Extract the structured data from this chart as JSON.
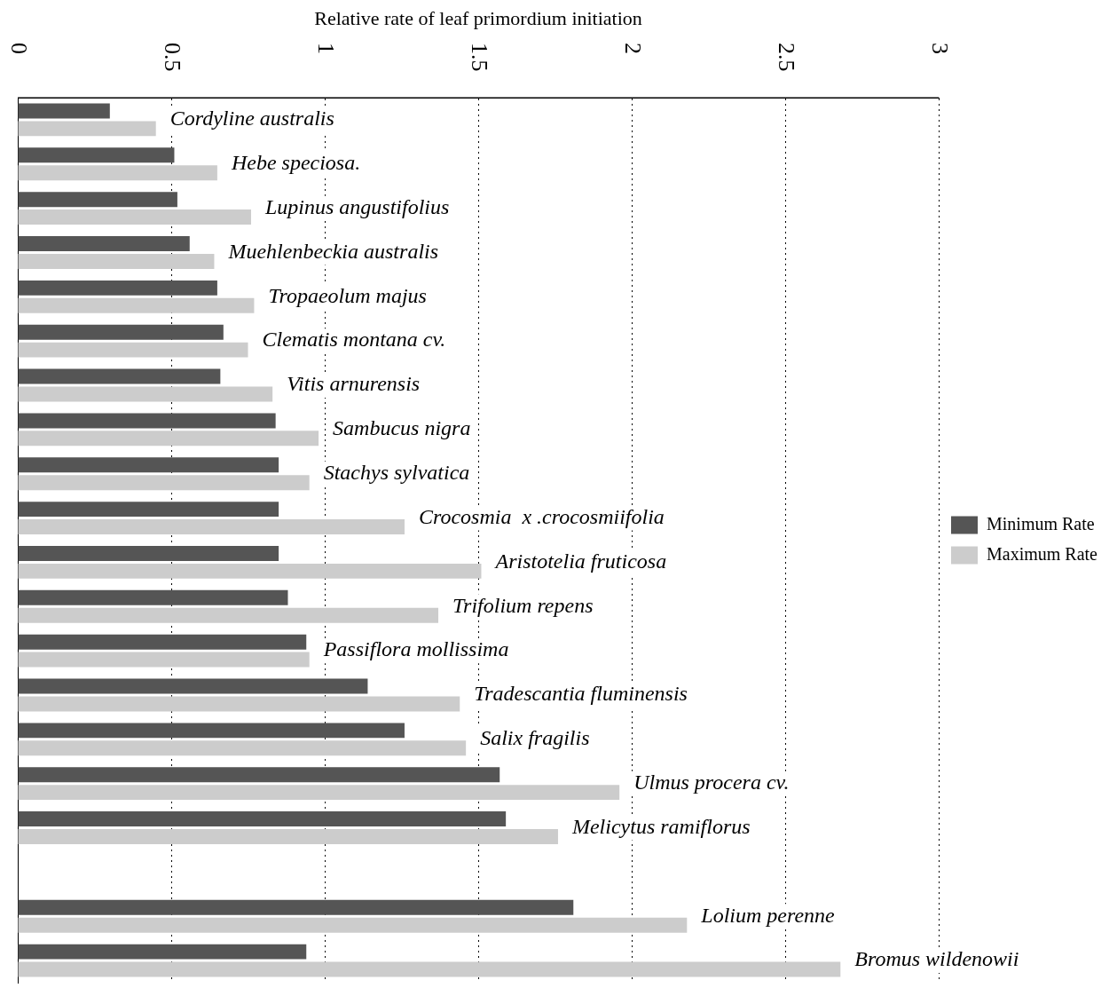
{
  "chart_data": {
    "type": "bar",
    "orientation": "horizontal",
    "xlabel": "Relative rate of leaf primordium initiation",
    "categories": [
      "Cordyline australis",
      "Hebe speciosa.",
      "Lupinus angustifolius",
      "Muehlenbeckia australis",
      "Tropaeolum majus",
      "Clematis montana cv.",
      "Vitis arnurensis",
      "Sambucus nigra",
      "Stachys sylvatica",
      "Crocosmia  x .crocosmiifolia",
      "Aristotelia fruticosa",
      "Trifolium repens",
      "Passiflora mollissima",
      "Tradescantia fluminensis",
      "Salix fragilis",
      "Ulmus procera cv.",
      "Melicytus ramiflorus",
      null,
      "Lolium perenne",
      "Bromus wildenowii"
    ],
    "series": [
      {
        "name": "Minimum Rate",
        "color": "#555555",
        "values": [
          0.3,
          0.51,
          0.52,
          0.56,
          0.65,
          0.67,
          0.66,
          0.84,
          0.85,
          0.85,
          0.85,
          0.88,
          0.94,
          1.14,
          1.26,
          1.57,
          1.59,
          null,
          1.81,
          0.94
        ]
      },
      {
        "name": "Maximum Rate",
        "color": "#cccccc",
        "values": [
          0.45,
          0.65,
          0.76,
          0.64,
          0.77,
          0.75,
          0.83,
          0.98,
          0.95,
          1.26,
          1.51,
          1.37,
          0.95,
          1.44,
          1.46,
          1.96,
          1.76,
          null,
          2.18,
          2.68
        ]
      }
    ],
    "xlim": [
      0,
      3
    ],
    "xticks": [
      0,
      0.5,
      1,
      1.5,
      2,
      2.5,
      3
    ],
    "grid": "x",
    "legend": "right",
    "tick_labels": "x"
  }
}
